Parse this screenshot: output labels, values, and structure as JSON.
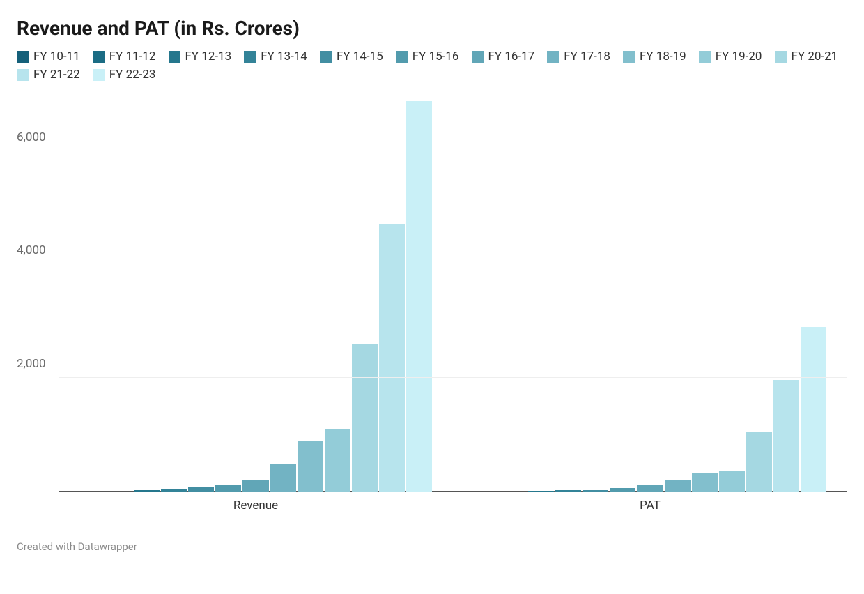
{
  "chart": {
    "title": "Revenue and PAT (in Rs. Crores)",
    "type": "bar-grouped",
    "title_fontsize": 28,
    "title_fontweight": 700,
    "title_color": "#1a1a1a",
    "background_color": "#ffffff",
    "grid_color": "#dcdcdc",
    "grid_light_color": "#eeeeee",
    "baseline_color": "#555555",
    "axis_label_color": "#6b6b6b",
    "axis_label_fontsize": 17,
    "x_label_color": "#333333",
    "x_label_fontsize": 17,
    "legend_fontsize": 17,
    "legend_color": "#333333",
    "footer_color": "#8a8a8a",
    "footer_fontsize": 15,
    "ylim": [
      0,
      6880
    ],
    "y_ticks": [
      {
        "value": 2000,
        "label": "2,000",
        "style": "light"
      },
      {
        "value": 4000,
        "label": "4,000",
        "style": "dark"
      },
      {
        "value": 6000,
        "label": "6,000",
        "style": "light"
      }
    ],
    "series": [
      {
        "name": "FY 10-11",
        "color": "#15607a"
      },
      {
        "name": "FY 11-12",
        "color": "#1b6c84"
      },
      {
        "name": "FY 12-13",
        "color": "#25778d"
      },
      {
        "name": "FY 13-14",
        "color": "#338398"
      },
      {
        "name": "FY 14-15",
        "color": "#428ea2"
      },
      {
        "name": "FY 15-16",
        "color": "#529bad"
      },
      {
        "name": "FY 16-17",
        "color": "#61a6b7"
      },
      {
        "name": "FY 17-18",
        "color": "#72b3c3"
      },
      {
        "name": "FY 18-19",
        "color": "#82bfcd"
      },
      {
        "name": "FY 19-20",
        "color": "#93ccd8"
      },
      {
        "name": "FY 20-21",
        "color": "#a5d8e2"
      },
      {
        "name": "FY 21-22",
        "color": "#b7e4ed"
      },
      {
        "name": "FY 22-23",
        "color": "#c9f0f7"
      }
    ],
    "groups": [
      {
        "label": "Revenue",
        "values": [
          0,
          0,
          20,
          40,
          70,
          120,
          200,
          480,
          900,
          1100,
          2600,
          4700,
          6880
        ]
      },
      {
        "label": "PAT",
        "values": [
          0,
          0,
          10,
          20,
          30,
          60,
          110,
          200,
          320,
          370,
          1050,
          1970,
          2900
        ]
      }
    ],
    "footer_text": "Created with Datawrapper"
  }
}
